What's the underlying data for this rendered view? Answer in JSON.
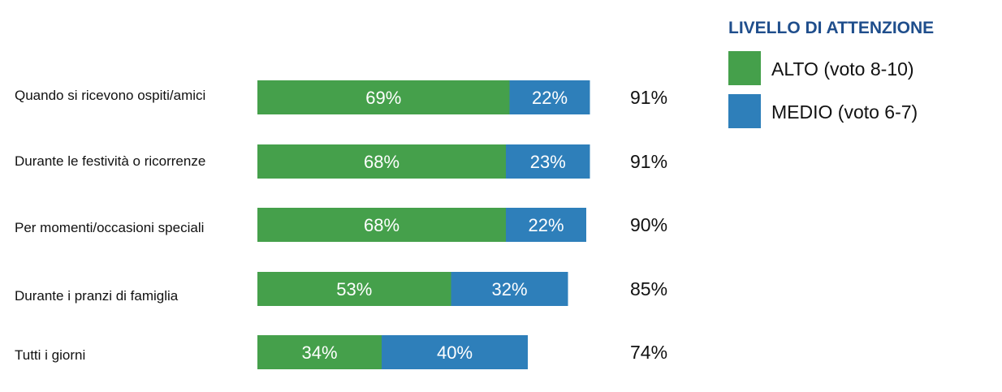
{
  "chart_data": {
    "type": "bar",
    "orientation": "horizontal",
    "stacked": true,
    "categories": [
      "Quando si ricevono ospiti/amici",
      "Durante le festività o ricorrenze",
      "Per momenti/occasioni speciali",
      "Durante i pranzi di famiglia",
      "Tutti i giorni"
    ],
    "series": [
      {
        "name": "ALTO (voto 8-10)",
        "color": "#45a04b",
        "values": [
          69,
          68,
          68,
          53,
          34
        ],
        "labels": [
          "69%",
          "68%",
          "68%",
          "53%",
          "34%"
        ]
      },
      {
        "name": "MEDIO (voto 6-7)",
        "color": "#2e7fba",
        "values": [
          22,
          23,
          22,
          32,
          40
        ],
        "labels": [
          "22%",
          "23%",
          "22%",
          "32%",
          "40%"
        ]
      }
    ],
    "totals": [
      "91%",
      "91%",
      "90%",
      "85%",
      "74%"
    ],
    "xlim": [
      0,
      100
    ],
    "grid": false,
    "legend": {
      "title": "LIVELLO DI ATTENZIONE",
      "placement": "top-right"
    }
  }
}
